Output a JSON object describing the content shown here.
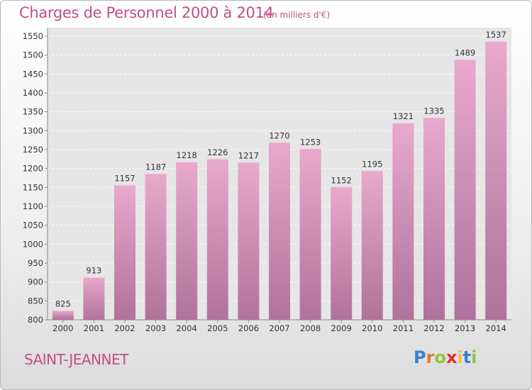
{
  "header": {
    "title": "Charges de Personnel 2000 à 2014",
    "unit": "(en milliers d'€)"
  },
  "footer": {
    "commune": "SAINT-JEANNET",
    "logo_letters": [
      "P",
      "r",
      "o",
      "x",
      "i",
      "t",
      "i"
    ]
  },
  "colors": {
    "title": "#c24f86",
    "bar_top": "#e8a9cc",
    "bar_bottom": "#b0729a",
    "logo": [
      "#3a7fd4",
      "#e8762b",
      "#8cc63f",
      "#e02b2b",
      "#f2c12e",
      "#3a7fd4",
      "#8cc63f"
    ]
  },
  "chart_data": {
    "type": "bar",
    "title": "Charges de Personnel 2000 à 2014",
    "subtitle": "(en milliers d'€)",
    "categories": [
      "2000",
      "2001",
      "2002",
      "2003",
      "2004",
      "2005",
      "2006",
      "2007",
      "2008",
      "2009",
      "2010",
      "2011",
      "2012",
      "2013",
      "2014"
    ],
    "values": [
      825,
      913,
      1157,
      1187,
      1218,
      1226,
      1217,
      1270,
      1253,
      1152,
      1195,
      1321,
      1335,
      1489,
      1537
    ],
    "ylim": [
      800,
      1550
    ],
    "yticks": [
      800,
      850,
      900,
      950,
      1000,
      1050,
      1100,
      1150,
      1200,
      1250,
      1300,
      1350,
      1400,
      1450,
      1500,
      1550
    ],
    "grid": true,
    "legend": "none"
  }
}
